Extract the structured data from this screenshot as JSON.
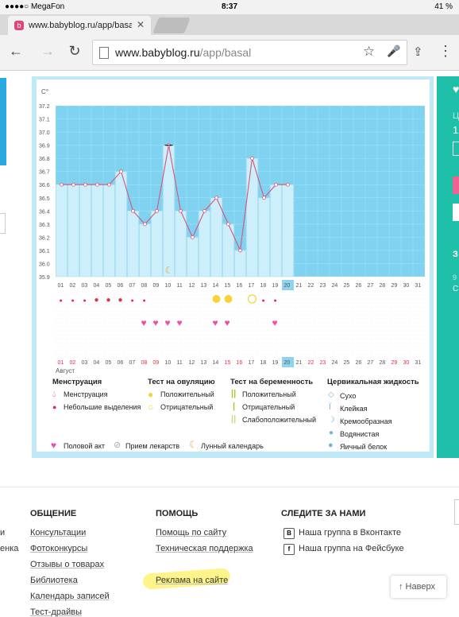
{
  "status_bar": {
    "carrier": "●●●●○ MegaFon",
    "time": "8:37",
    "battery": "41 %"
  },
  "browser": {
    "tab_title": "www.babyblog.ru/app/basa",
    "tab_icon": "babyblog-favicon",
    "tab_icon_glyph": "b",
    "url_host": "www.babyblog.ru",
    "url_path": "/app/basal",
    "back": "←",
    "forward": "→",
    "reload": "↻",
    "star": "☆",
    "mic": "🎤",
    "share": "⇪",
    "menu": "⋮",
    "close": "✕"
  },
  "chart_data": {
    "type": "line",
    "ylabel": "C°",
    "y_ticks": [
      "37.2",
      "37.1",
      "37.0",
      "36.9",
      "36.8",
      "36.7",
      "36.6",
      "36.5",
      "36.4",
      "36.3",
      "36.2",
      "36.1",
      "36.0",
      "35.9"
    ],
    "ylim": [
      35.9,
      37.2
    ],
    "days": [
      "01",
      "02",
      "03",
      "04",
      "05",
      "06",
      "07",
      "08",
      "09",
      "10",
      "11",
      "12",
      "13",
      "14",
      "15",
      "16",
      "17",
      "18",
      "19",
      "20",
      "21",
      "22",
      "23",
      "24",
      "25",
      "26",
      "27",
      "28",
      "29",
      "30",
      "31"
    ],
    "highlighted_day": "20",
    "series": [
      {
        "values": [
          36.6,
          36.6,
          36.6,
          36.6,
          36.6,
          36.7,
          36.4,
          36.3,
          36.4,
          36.9,
          36.4,
          36.2,
          36.4,
          36.5,
          36.3,
          36.1,
          36.8,
          36.5,
          36.6,
          36.6
        ]
      }
    ],
    "marked_point_day": "10",
    "moon_day": "10",
    "menstruation_days": [
      "01",
      "02",
      "03",
      "04",
      "05",
      "06",
      "07",
      "08"
    ],
    "menstruation_large_days": [
      "04",
      "05",
      "06"
    ],
    "ovulation_positive_days": [
      "14",
      "15"
    ],
    "ovulation_negative_days": [
      "17"
    ],
    "menstruation_small_after_days": [
      "18",
      "19"
    ],
    "intercourse_days": [
      "08",
      "09",
      "10",
      "11",
      "14",
      "15",
      "19"
    ],
    "bottom_days": [
      "01",
      "02",
      "03",
      "04",
      "05",
      "06",
      "07",
      "08",
      "09",
      "10",
      "11",
      "12",
      "13",
      "14",
      "15",
      "16",
      "17",
      "18",
      "19",
      "20",
      "21",
      "22",
      "23",
      "24",
      "25",
      "26",
      "27",
      "28",
      "29",
      "30",
      "31"
    ],
    "bottom_red_days": [
      "01",
      "02",
      "08",
      "09",
      "15",
      "16",
      "22",
      "23",
      "29",
      "30"
    ],
    "month_label": "Август"
  },
  "legend": {
    "menstruation": {
      "title": "Менструация",
      "items": [
        "Менструация",
        "Небольшие выделения"
      ]
    },
    "ovulation": {
      "title": "Тест на овуляцию",
      "items": [
        "Положительный",
        "Отрицательный"
      ]
    },
    "pregnancy": {
      "title": "Тест на беременность",
      "items": [
        "Положительный",
        "Отрицательный",
        "Слабоположительный"
      ]
    },
    "cervical": {
      "title": "Цервикальная жидкость",
      "items": [
        "Сухо",
        "Клейкая",
        "Кремообразная",
        "Водянистая",
        "Яичный белок"
      ]
    },
    "bottom": [
      "Половой акт",
      "Прием лекарств",
      "Лунный календарь"
    ]
  },
  "colors": {
    "plot_bg": "#7fd3f0",
    "bar": "#cdeefb",
    "line": "#d9537a",
    "accent_green": "#1fc0a9",
    "red": "#e8294a",
    "pink": "#ec4fa3",
    "yellow": "#f6d33c"
  },
  "right_panel": {
    "c1": "Ц",
    "c2": "1",
    "c3": "З",
    "c4": "9",
    "c5": "С"
  },
  "footer": {
    "left_cut": [
      "и",
      "енка"
    ],
    "col1": {
      "title": "ОБЩЕНИЕ",
      "links": [
        "Консультации",
        "Фотоконкурсы",
        "Отзывы о товарах",
        "Библиотека",
        "Календарь записей",
        "Тест-драйвы"
      ]
    },
    "col2": {
      "title": "ПОМОЩЬ",
      "links": [
        "Помощь по сайту",
        "Техническая поддержка",
        "Реклама на сайте"
      ]
    },
    "col3": {
      "title": "СЛЕДИТЕ ЗА НАМИ",
      "links": [
        "Наша группа в Вконтакте",
        "Наша группа на Фейсбуке"
      ],
      "icons": [
        "В",
        "f"
      ]
    },
    "up_button": "↑ Наверх"
  }
}
